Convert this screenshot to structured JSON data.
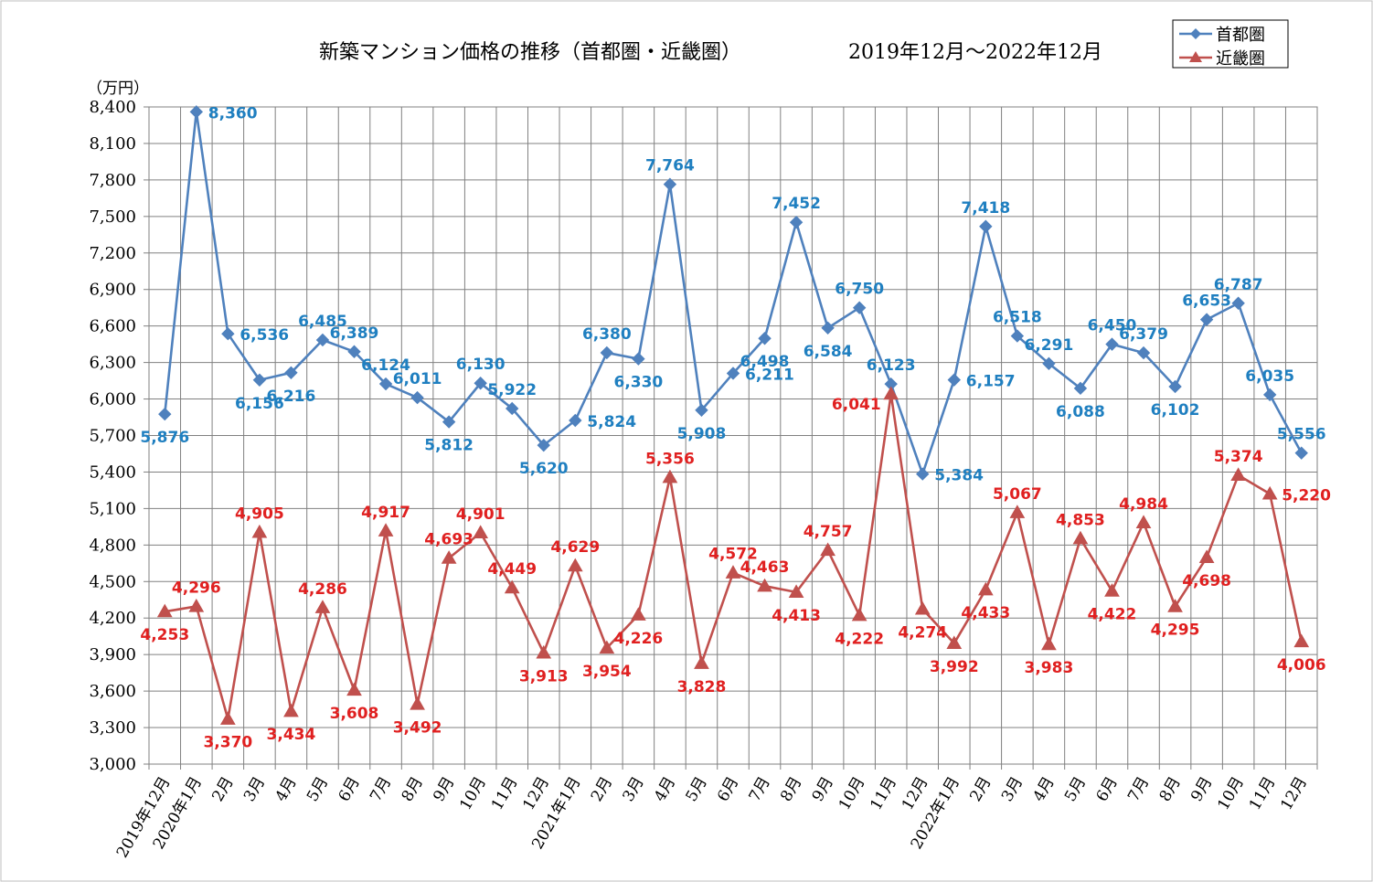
{
  "chart_data": {
    "type": "line",
    "title": "新築マンション価格の推移（首都圏・近畿圏）",
    "period": "2019年12月～2022年12月",
    "ylabel": "（万円）",
    "ylim": [
      3000,
      8400
    ],
    "ystep": 300,
    "grid": true,
    "legend_position": "top-right",
    "categories": [
      "2019年12月",
      "2020年1月",
      "2月",
      "3月",
      "4月",
      "5月",
      "6月",
      "7月",
      "8月",
      "9月",
      "10月",
      "11月",
      "12月",
      "2021年1月",
      "2月",
      "3月",
      "4月",
      "5月",
      "6月",
      "7月",
      "8月",
      "9月",
      "10月",
      "11月",
      "12月",
      "2022年1月",
      "2月",
      "3月",
      "4月",
      "5月",
      "6月",
      "7月",
      "8月",
      "9月",
      "10月",
      "11月",
      "12月"
    ],
    "series": [
      {
        "name": "首都圏",
        "color": "#4F81BD",
        "label_color": "#1F7FC0",
        "marker": "diamond",
        "values": [
          5876,
          8360,
          6536,
          6156,
          6216,
          6485,
          6389,
          6124,
          6011,
          5812,
          6130,
          5922,
          5620,
          5824,
          6380,
          6330,
          7764,
          5908,
          6211,
          6498,
          7452,
          6584,
          6750,
          6123,
          5384,
          6157,
          7418,
          6518,
          6291,
          6088,
          6450,
          6379,
          6102,
          6653,
          6787,
          6035,
          5556
        ],
        "value_labels": [
          "5,876",
          "8,360",
          "6,536",
          "6,156",
          "6,216",
          "6,485",
          "6,389",
          "6,124",
          "6,011",
          "5,812",
          "6,130",
          "5,922",
          "5,620",
          "5,824",
          "6,380",
          "6,330",
          "7,764",
          "5,908",
          "6,211",
          "6,498",
          "7,452",
          "6,584",
          "6,750",
          "6,123",
          "5,384",
          "6,157",
          "7,418",
          "6,518",
          "6,291",
          "6,088",
          "6,450",
          "6,379",
          "6,102",
          "6,653",
          "6,787",
          "6,035",
          "5,556"
        ],
        "label_positions": [
          "below",
          "right",
          "right",
          "below",
          "below",
          "above",
          "above",
          "above",
          "above",
          "below",
          "above",
          "above",
          "below",
          "right",
          "above",
          "below",
          "above",
          "below",
          "right",
          "below",
          "above",
          "below",
          "above",
          "above",
          "right",
          "right",
          "above",
          "above",
          "above",
          "below",
          "above",
          "above",
          "below",
          "above",
          "above",
          "above",
          "above"
        ]
      },
      {
        "name": "近畿圏",
        "color": "#C0504D",
        "label_color": "#E02020",
        "marker": "triangle",
        "values": [
          4253,
          4296,
          3370,
          4905,
          3434,
          4286,
          3608,
          4917,
          3492,
          4693,
          4901,
          4449,
          3913,
          4629,
          3954,
          4226,
          5356,
          3828,
          4572,
          4463,
          4413,
          4757,
          4222,
          6041,
          4274,
          3992,
          4433,
          5067,
          3983,
          4853,
          4422,
          4984,
          4295,
          4698,
          5374,
          5220,
          4006
        ],
        "value_labels": [
          "4,253",
          "4,296",
          "3,370",
          "4,905",
          "3,434",
          "4,286",
          "3,608",
          "4,917",
          "3,492",
          "4,693",
          "4,901",
          "4,449",
          "3,913",
          "4,629",
          "3,954",
          "4,226",
          "5,356",
          "3,828",
          "4,572",
          "4,463",
          "4,413",
          "4,757",
          "4,222",
          "6,041",
          "4,274",
          "3,992",
          "4,433",
          "5,067",
          "3,983",
          "4,853",
          "4,422",
          "4,984",
          "4,295",
          "4,698",
          "5,374",
          "5,220",
          "4,006"
        ],
        "label_positions": [
          "below",
          "above",
          "below",
          "above",
          "below",
          "above",
          "below",
          "above",
          "below",
          "above",
          "above",
          "above",
          "below",
          "above",
          "below",
          "below",
          "above",
          "below",
          "above",
          "above",
          "below",
          "above",
          "below",
          "left",
          "below",
          "below",
          "below",
          "above",
          "below",
          "above",
          "below",
          "above",
          "below",
          "below",
          "above",
          "right",
          "below"
        ]
      }
    ]
  }
}
